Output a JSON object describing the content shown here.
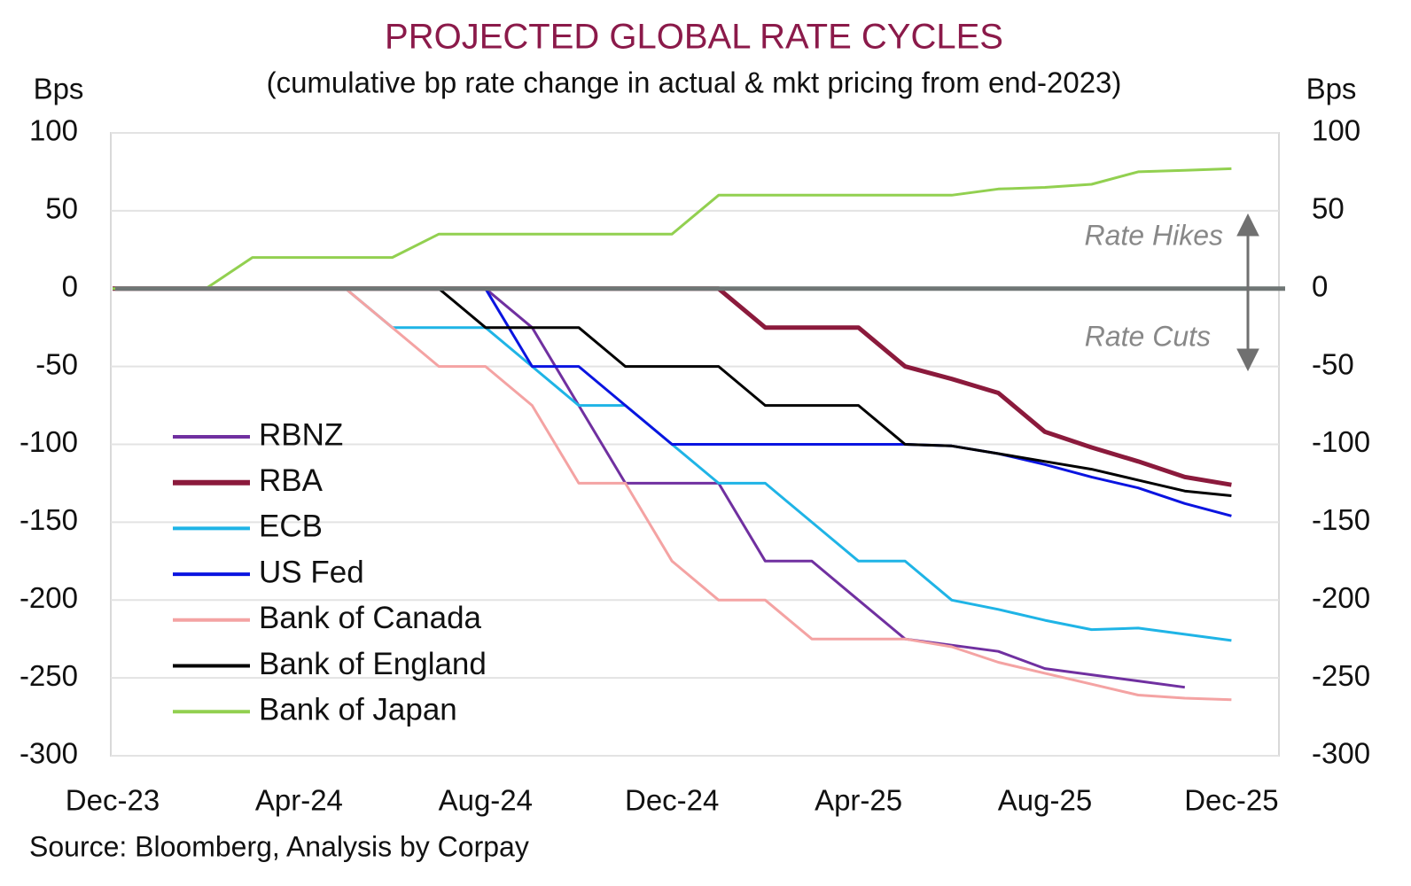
{
  "chart_data": {
    "type": "line",
    "title": "PROJECTED GLOBAL RATE CYCLES",
    "subtitle": "(cumulative bp rate change in actual & mkt pricing from end-2023)",
    "y_label": "Bps",
    "y2_label": "Bps",
    "source": "Source: Bloomberg, Analysis by Corpay",
    "annotations": [
      "Rate Hikes",
      "Rate Cuts"
    ],
    "categories": [
      "Dec-23",
      null,
      null,
      null,
      "Apr-24",
      null,
      null,
      null,
      "Aug-24",
      null,
      null,
      null,
      "Dec-24",
      null,
      null,
      null,
      "Apr-25",
      null,
      null,
      null,
      "Aug-25",
      null,
      null,
      null,
      "Dec-25"
    ],
    "ylim": [
      -300,
      100
    ],
    "yticks": [
      100,
      50,
      0,
      -50,
      -100,
      -150,
      -200,
      -250,
      -300
    ],
    "y2lim": [
      -300,
      100
    ],
    "y2ticks": [
      100,
      50,
      0,
      -50,
      -100,
      -150,
      -200,
      -250,
      -300
    ],
    "grid": true,
    "legend": "left",
    "series": [
      {
        "name": "RBNZ",
        "color": "#7030a0",
        "values": [
          0,
          0,
          0,
          0,
          0,
          0,
          0,
          0,
          0,
          -25,
          -75,
          -125,
          -125,
          -125,
          -175,
          -175,
          -200,
          -225,
          -229,
          -233,
          -244,
          -248,
          -252,
          -256,
          null
        ]
      },
      {
        "name": "RBA",
        "color": "#8b1a3c",
        "values": [
          0,
          0,
          0,
          0,
          0,
          0,
          0,
          0,
          0,
          0,
          0,
          0,
          0,
          0,
          -25,
          -25,
          -25,
          -50,
          -58,
          -67,
          -92,
          -102,
          -111,
          -121,
          -126
        ]
      },
      {
        "name": "ECB",
        "color": "#1fb4e6",
        "values": [
          0,
          0,
          0,
          0,
          0,
          0,
          -25,
          -25,
          -25,
          -50,
          -75,
          -75,
          -100,
          -125,
          -125,
          -150,
          -175,
          -175,
          -200,
          -206,
          -213,
          -219,
          -218,
          -222,
          -226
        ]
      },
      {
        "name": "US Fed",
        "color": "#0a14e0",
        "values": [
          0,
          0,
          0,
          0,
          0,
          0,
          0,
          0,
          0,
          -50,
          -50,
          -75,
          -100,
          -100,
          -100,
          -100,
          -100,
          -100,
          -101,
          -106,
          -113,
          -121,
          -128,
          -138,
          -146
        ]
      },
      {
        "name": "Bank of Canada",
        "color": "#f4a3a3",
        "values": [
          0,
          0,
          0,
          0,
          0,
          0,
          -25,
          -50,
          -50,
          -75,
          -125,
          -125,
          -175,
          -200,
          -200,
          -225,
          -225,
          -225,
          -230,
          -240,
          -247,
          -254,
          -261,
          -263,
          -264
        ]
      },
      {
        "name": "Bank of England",
        "color": "#000000",
        "values": [
          0,
          0,
          0,
          0,
          0,
          0,
          0,
          0,
          -25,
          -25,
          -25,
          -50,
          -50,
          -50,
          -75,
          -75,
          -75,
          -100,
          -101,
          -106,
          -111,
          -116,
          -123,
          -130,
          -133
        ]
      },
      {
        "name": "Bank of Japan",
        "color": "#92d050",
        "values": [
          0,
          0,
          0,
          20,
          20,
          20,
          20,
          35,
          35,
          35,
          35,
          35,
          35,
          60,
          60,
          60,
          60,
          60,
          60,
          64,
          65,
          67,
          75,
          76,
          77
        ]
      }
    ]
  }
}
